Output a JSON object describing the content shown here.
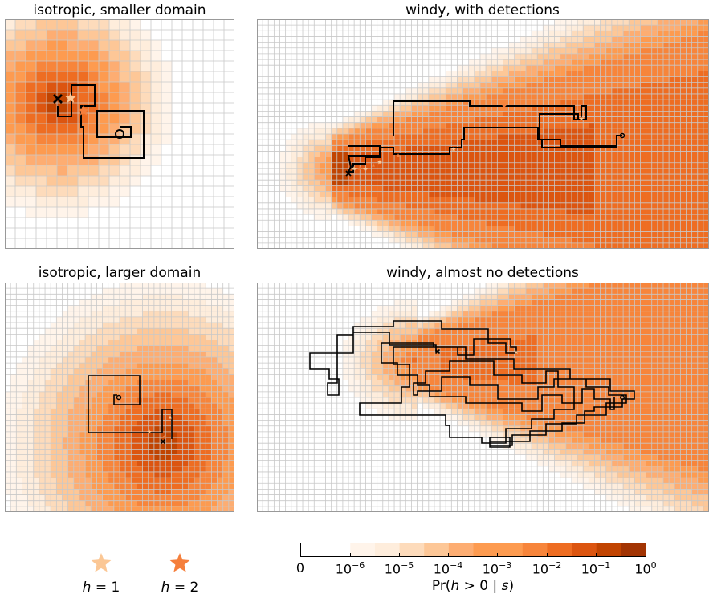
{
  "panels": [
    {
      "title": "isotropic, smaller domain"
    },
    {
      "title": "windy, with detections"
    },
    {
      "title": "isotropic, larger domain"
    },
    {
      "title": "windy, almost no detections"
    }
  ],
  "colors": {
    "levels": [
      "#ffffff",
      "#fff4ea",
      "#feeddc",
      "#fddbbb",
      "#fdc797",
      "#fdad72",
      "#fd9b50",
      "#f7853b",
      "#ee6d22",
      "#dc5510",
      "#c14401",
      "#a23403"
    ],
    "grid": "#c8c8c8",
    "path": "#000000",
    "star_h1": "#fbc795",
    "star_h2": "#f57f3c"
  },
  "legend": [
    {
      "label": "h = 1",
      "var": "h",
      "rest": " = 1",
      "icon": "star-icon"
    },
    {
      "label": "h = 2",
      "var": "h",
      "rest": " = 2",
      "icon": "star-icon"
    }
  ],
  "colorbar": {
    "ticks": [
      "0",
      "10^-6",
      "10^-5",
      "10^-4",
      "10^-3",
      "10^-2",
      "10^-1",
      "10^0"
    ],
    "label": "Pr(h > 0 | s)"
  }
}
